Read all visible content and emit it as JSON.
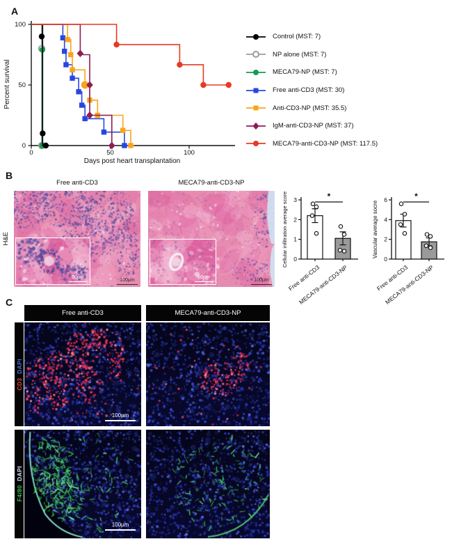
{
  "panels": {
    "a": {
      "label": "A"
    },
    "b": {
      "label": "B",
      "row_label": "H&E",
      "images": [
        {
          "title": "Free anti-CD3",
          "inset_scale": "50µm",
          "scale": "100µm"
        },
        {
          "title": "MECA79-anti-CD3-NP",
          "inset_scale": "50µm",
          "scale": "100µm"
        }
      ]
    },
    "c": {
      "label": "C",
      "col_headers": [
        "Free anti-CD3",
        "MECA79-anti-CD3-NP"
      ],
      "rows": [
        {
          "parts": [
            {
              "text": "CD3",
              "color": "#e04a38"
            },
            {
              "text": "DAPI",
              "color": "#4a74d8"
            }
          ],
          "scale": "100µm"
        },
        {
          "parts": [
            {
              "text": "F4/80",
              "color": "#3fbf4f"
            },
            {
              "text": "DAPI",
              "color": "#dfe6ff"
            }
          ],
          "scale": "100µm"
        }
      ]
    }
  },
  "chart_data": [
    {
      "type": "line",
      "subtype": "kaplan-meier",
      "title": "",
      "xlabel": "Days post heart transplantation",
      "ylabel": "Percent survival",
      "xlim": [
        0,
        128
      ],
      "xticks": [
        0,
        50,
        100
      ],
      "ylim": [
        0,
        100
      ],
      "yticks": [
        0,
        50,
        100
      ],
      "grid": false,
      "legend_position": "right",
      "series": [
        {
          "label": "Control (MST: 7)",
          "color": "#000000",
          "marker": "circle",
          "marker_fill": "solid",
          "steps": [
            [
              0,
              100
            ],
            [
              7.2,
              100
            ],
            [
              7.2,
              0
            ],
            [
              10,
              0
            ]
          ],
          "points": [
            [
              6.6,
              90
            ],
            [
              7.2,
              10
            ],
            [
              9.2,
              0
            ]
          ]
        },
        {
          "label": "NP alone (MST: 7)",
          "color": "#9b9b9b",
          "marker": "circle",
          "marker_fill": "open",
          "steps": [
            [
              0,
              100
            ],
            [
              6.6,
              100
            ],
            [
              6.6,
              0
            ],
            [
              9,
              0
            ]
          ],
          "points": [
            [
              6.6,
              80
            ],
            [
              6.6,
              0
            ]
          ]
        },
        {
          "label": "MECA79-NP (MST: 7)",
          "color": "#169c52",
          "marker": "circle",
          "marker_fill": "solid",
          "steps": [
            [
              0,
              100
            ],
            [
              7,
              100
            ],
            [
              7,
              0
            ],
            [
              9.5,
              0
            ]
          ],
          "points": [
            [
              7,
              79
            ],
            [
              7,
              0
            ]
          ]
        },
        {
          "label": "Free anti-CD3 (MST: 30)",
          "color": "#2746e0",
          "marker": "square",
          "marker_fill": "solid",
          "steps": [
            [
              0,
              100
            ],
            [
              20,
              100
            ],
            [
              20,
              88.9
            ],
            [
              21,
              88.9
            ],
            [
              21,
              77.8
            ],
            [
              22,
              77.8
            ],
            [
              22,
              66.7
            ],
            [
              26,
              66.7
            ],
            [
              26,
              55.6
            ],
            [
              30,
              55.6
            ],
            [
              30,
              44.4
            ],
            [
              32,
              44.4
            ],
            [
              32,
              33.3
            ],
            [
              34,
              33.3
            ],
            [
              34,
              22.2
            ],
            [
              46,
              22.2
            ],
            [
              46,
              11.1
            ],
            [
              59,
              11.1
            ],
            [
              59,
              0
            ],
            [
              61,
              0
            ]
          ],
          "points": [
            [
              20,
              88.9
            ],
            [
              21,
              77.8
            ],
            [
              22,
              66.7
            ],
            [
              26,
              55.6
            ],
            [
              30,
              44.4
            ],
            [
              32,
              33.3
            ],
            [
              34,
              22.2
            ],
            [
              46,
              11.1
            ],
            [
              59,
              0
            ]
          ]
        },
        {
          "label": "Anti-CD3-NP (MST: 35.5)",
          "color": "#f7a51d",
          "marker": "square",
          "marker_fill": "solid",
          "steps": [
            [
              0,
              100
            ],
            [
              23,
              100
            ],
            [
              23,
              87.5
            ],
            [
              25,
              87.5
            ],
            [
              25,
              75
            ],
            [
              26,
              75
            ],
            [
              26,
              62.5
            ],
            [
              34,
              62.5
            ],
            [
              34,
              50
            ],
            [
              37,
              50
            ],
            [
              37,
              37.5
            ],
            [
              42,
              37.5
            ],
            [
              42,
              25
            ],
            [
              58,
              25
            ],
            [
              58,
              12.5
            ],
            [
              63,
              12.5
            ],
            [
              63,
              0
            ],
            [
              65,
              0
            ]
          ],
          "points": [
            [
              23,
              87.5
            ],
            [
              25,
              75
            ],
            [
              26,
              62.5
            ],
            [
              37,
              37.5
            ],
            [
              42,
              25
            ],
            [
              58,
              12.5
            ],
            [
              63,
              0
            ]
          ],
          "big_point": [
            34,
            50
          ]
        },
        {
          "label": "IgM-anti-CD3-NP (MST: 37)",
          "color": "#8e1c55",
          "marker": "diamond",
          "marker_fill": "solid",
          "steps": [
            [
              0,
              100
            ],
            [
              31,
              100
            ],
            [
              31,
              75
            ],
            [
              37,
              75
            ],
            [
              37,
              25
            ],
            [
              51,
              25
            ],
            [
              51,
              0
            ],
            [
              53,
              0
            ]
          ],
          "points": [
            [
              31,
              76
            ],
            [
              37,
              50
            ],
            [
              37,
              25
            ],
            [
              51,
              0
            ]
          ]
        },
        {
          "label": "MECA79-anti-CD3-NP (MST: 117.5)",
          "color": "#e93823",
          "marker": "circle",
          "marker_fill": "solid",
          "steps": [
            [
              0,
              100
            ],
            [
              54,
              100
            ],
            [
              54,
              83.3
            ],
            [
              94,
              83.3
            ],
            [
              94,
              66.7
            ],
            [
              109,
              66.7
            ],
            [
              109,
              50
            ],
            [
              126,
              50
            ]
          ],
          "points": [
            [
              54,
              83.3
            ],
            [
              94,
              66.7
            ],
            [
              109,
              50
            ],
            [
              125,
              50
            ]
          ]
        }
      ]
    },
    {
      "type": "bar",
      "ylabel": "Cellular infiltration average score",
      "categories": [
        "Free anti-CD3",
        "MECA79-anti-CD3-NP"
      ],
      "values": [
        2.2,
        1.05
      ],
      "errors": [
        0.35,
        0.33
      ],
      "points": [
        [
          2.8,
          2.65,
          2.2,
          1.3
        ],
        [
          1.65,
          1.25,
          0.45,
          0.4
        ]
      ],
      "bar_colors": [
        "#ffffff",
        "#9a9a9a"
      ],
      "ylim": [
        0,
        3
      ],
      "yticks": [
        0,
        1,
        2,
        3
      ],
      "significance": "*"
    },
    {
      "type": "bar",
      "ylabel": "Vascular average socre",
      "categories": [
        "Free anti-CD3",
        "MECA79-anti-CD3-NP"
      ],
      "values": [
        3.9,
        1.75
      ],
      "errors": [
        0.65,
        0.4
      ],
      "points": [
        [
          5.6,
          4.55,
          3.5,
          2.6
        ],
        [
          2.5,
          2.3,
          1.35,
          1.15
        ]
      ],
      "bar_colors": [
        "#ffffff",
        "#9a9a9a"
      ],
      "ylim": [
        0,
        6
      ],
      "yticks": [
        0,
        2,
        4,
        6
      ],
      "significance": "*"
    }
  ]
}
